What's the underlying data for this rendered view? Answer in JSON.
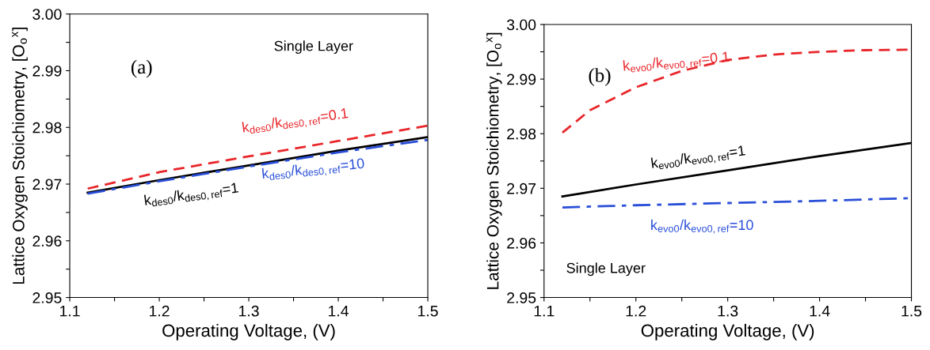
{
  "chart_data": [
    {
      "type": "line",
      "xlabel": "Operating Voltage, (V)",
      "ylabel": "Lattice Oxygen Stoichiometry, [O$_{o}$$^{x}$]",
      "annotations": [
        "Single Layer",
        "(a)"
      ],
      "xlim": [
        1.1,
        1.5
      ],
      "ylim": [
        2.95,
        3.0
      ],
      "xticks": [
        1.1,
        {
          "value": 1.15,
          "label": null
        },
        1.2,
        {
          "value": 1.25,
          "label": null
        },
        1.3,
        {
          "value": 1.35,
          "label": null
        },
        1.4,
        {
          "value": 1.45,
          "label": null
        },
        1.5
      ],
      "yticks": [
        2.95,
        {
          "value": 2.955,
          "label": null
        },
        2.96,
        {
          "value": 2.965,
          "label": null
        },
        2.97,
        {
          "value": 2.975,
          "label": null
        },
        2.98,
        {
          "value": 2.985,
          "label": null
        },
        2.99,
        {
          "value": 2.995,
          "label": null
        },
        {
          "value": 3.0,
          "label": "3.00"
        }
      ],
      "grid": false,
      "legend": false,
      "series": [
        {
          "name": "k$_{des0}$/k$_{des0,ref}$=0.1",
          "color": "#e8262a",
          "line_style": "dashed",
          "x": [
            1.12,
            1.2,
            1.3,
            1.4,
            1.5
          ],
          "values": [
            2.9692,
            2.9721,
            2.9749,
            2.9776,
            2.9803
          ]
        },
        {
          "name": "k$_{des0}$/k$_{des0,ref}$=1",
          "color": "#000000",
          "line_style": "solid",
          "x": [
            1.12,
            1.2,
            1.3,
            1.4,
            1.5
          ],
          "values": [
            2.9685,
            2.9707,
            2.9733,
            2.9759,
            2.9783
          ]
        },
        {
          "name": "k$_{des0}$/k$_{des0,ref}$=10",
          "color": "#2a4fd8",
          "line_style": "dashdot",
          "x": [
            1.12,
            1.2,
            1.3,
            1.4,
            1.5
          ],
          "values": [
            2.9683,
            2.9705,
            2.9731,
            2.9756,
            2.9778
          ]
        }
      ]
    },
    {
      "type": "line",
      "xlabel": "Operating Voltage, (V)",
      "ylabel": "Lattice Oxygen Stoichiometry, [O$_{o}$$^{x}$]",
      "annotations": [
        "Single Layer",
        "(b)"
      ],
      "xlim": [
        1.1,
        1.5
      ],
      "ylim": [
        2.95,
        3.0
      ],
      "xticks": [
        1.1,
        {
          "value": 1.15,
          "label": null
        },
        1.2,
        {
          "value": 1.25,
          "label": null
        },
        1.3,
        {
          "value": 1.35,
          "label": null
        },
        1.4,
        {
          "value": 1.45,
          "label": null
        },
        1.5
      ],
      "yticks": [
        2.95,
        {
          "value": 2.955,
          "label": null
        },
        2.96,
        {
          "value": 2.965,
          "label": null
        },
        2.97,
        {
          "value": 2.975,
          "label": null
        },
        2.98,
        {
          "value": 2.985,
          "label": null
        },
        2.99,
        {
          "value": 2.995,
          "label": null
        },
        {
          "value": 3.0,
          "label": "3.00"
        }
      ],
      "grid": false,
      "legend": false,
      "series": [
        {
          "name": "k$_{evo0}$/k$_{evo0,ref}$=0.1",
          "color": "#e8262a",
          "line_style": "dashed",
          "x": [
            1.12,
            1.15,
            1.2,
            1.25,
            1.3,
            1.35,
            1.4,
            1.45,
            1.5
          ],
          "values": [
            2.9802,
            2.9843,
            2.9885,
            2.9915,
            2.9935,
            2.9945,
            2.995,
            2.9953,
            2.9954
          ]
        },
        {
          "name": "k$_{evo0}$/k$_{evo0,ref}$=1",
          "color": "#000000",
          "line_style": "solid",
          "x": [
            1.12,
            1.2,
            1.3,
            1.4,
            1.5
          ],
          "values": [
            2.9685,
            2.9707,
            2.9733,
            2.9759,
            2.9783
          ]
        },
        {
          "name": "k$_{evo0}$/k$_{evo0,ref}$=10",
          "color": "#2a4fd8",
          "line_style": "dashdot",
          "x": [
            1.12,
            1.2,
            1.3,
            1.4,
            1.5
          ],
          "values": [
            2.9665,
            2.9669,
            2.9673,
            2.9677,
            2.9682
          ]
        }
      ]
    }
  ]
}
